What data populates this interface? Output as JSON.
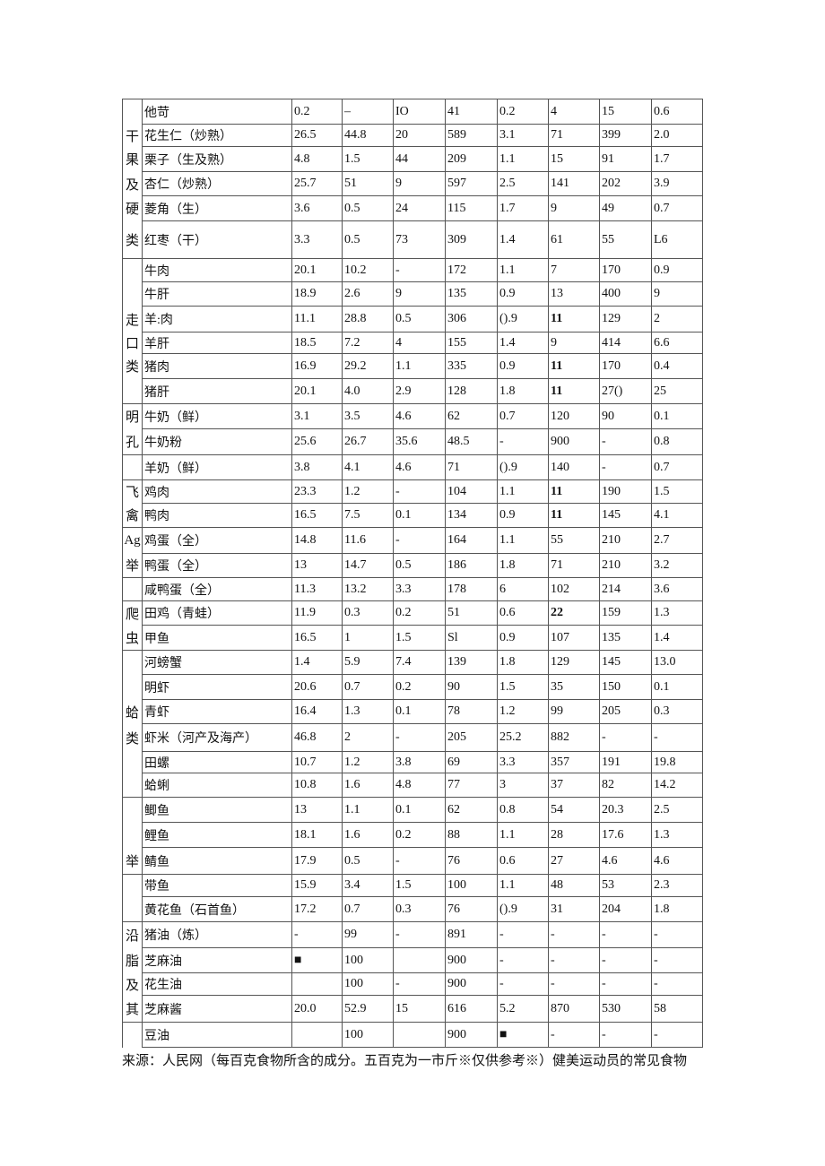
{
  "table": {
    "rows": [
      {
        "cat": "",
        "name": "他苛",
        "v": [
          "0.2",
          "–",
          "IO",
          "41",
          "0.2",
          "4",
          "15",
          "0.6"
        ]
      },
      {
        "cat": "干",
        "name": "花生仁（炒熟）",
        "v": [
          "26.5",
          "44.8",
          "20",
          "589",
          "3.1",
          "71",
          "399",
          "2.0"
        ]
      },
      {
        "cat": "果",
        "name": "栗子（生及熟）",
        "v": [
          "4.8",
          "1.5",
          "44",
          "209",
          "1.1",
          "15",
          "91",
          "1.7"
        ]
      },
      {
        "cat": "及",
        "name": "杏仁（炒熟）",
        "v": [
          "25.7",
          "51",
          "9",
          "597",
          "2.5",
          "141",
          "202",
          "3.9"
        ]
      },
      {
        "cat": "硬",
        "name": "菱角（生）",
        "v": [
          "3.6",
          "0.5",
          "24",
          "115",
          "1.7",
          "9",
          "49",
          "0.7"
        ]
      },
      {
        "cat": "类",
        "name": "红枣（干）",
        "v": [
          "3.3",
          "0.5",
          "73",
          "309",
          "1.4",
          "61",
          "55",
          "L6"
        ]
      },
      {
        "cat": "",
        "name": "牛肉",
        "v": [
          "20.1",
          "10.2",
          "-",
          "172",
          "1.1",
          "7",
          "170",
          "0.9"
        ],
        "g": 1
      },
      {
        "cat": "",
        "name": "牛肝",
        "v": [
          "18.9",
          "2.6",
          "9",
          "135",
          "0.9",
          "13",
          "400",
          "9"
        ]
      },
      {
        "cat": "走",
        "name": "羊:肉",
        "v": [
          "11.1",
          "28.8",
          "0.5",
          "306",
          "().9",
          "11",
          "129",
          "2"
        ]
      },
      {
        "cat": "口",
        "name": "羊肝",
        "v": [
          "18.5",
          "7.2",
          "4",
          "155",
          "1.4",
          "9",
          "414",
          "6.6"
        ]
      },
      {
        "cat": "类",
        "name": "猪肉",
        "v": [
          "16.9",
          "29.2",
          "1.1",
          "335",
          "0.9",
          "11",
          "170",
          "0.4"
        ]
      },
      {
        "cat": "",
        "name": "猪肝",
        "v": [
          "20.1",
          "4.0",
          "2.9",
          "128",
          "1.8",
          "11",
          "27()",
          "25"
        ]
      },
      {
        "cat": "明",
        "name": "牛奶（鲜）",
        "v": [
          "3.1",
          "3.5",
          "4.6",
          "62",
          "0.7",
          "120",
          "90",
          "0.1"
        ],
        "g": 1
      },
      {
        "cat": "孔",
        "name": "牛奶粉",
        "v": [
          "25.6",
          "26.7",
          "35.6",
          "48.5",
          "-",
          "900",
          "-",
          "0.8"
        ]
      },
      {
        "cat": "",
        "name": "羊奶（鲜）",
        "v": [
          "3.8",
          "4.1",
          "4.6",
          "71",
          "().9",
          "140",
          "-",
          "0.7"
        ],
        "g": 1
      },
      {
        "cat": "飞",
        "name": "鸡肉",
        "v": [
          "23.3",
          "1.2",
          "-",
          "104",
          "1.1",
          "11",
          "190",
          "1.5"
        ],
        "g": 1
      },
      {
        "cat": "禽",
        "name": "鸭肉",
        "v": [
          "16.5",
          "7.5",
          "0.1",
          "134",
          "0.9",
          "11",
          "145",
          "4.1"
        ]
      },
      {
        "cat": "Ag",
        "name": "鸡蛋（全）",
        "v": [
          "14.8",
          "11.6",
          "-",
          "164",
          "1.1",
          "55",
          "210",
          "2.7"
        ],
        "g": 1
      },
      {
        "cat": "举",
        "name": "鸭蛋（全）",
        "v": [
          "13",
          "14.7",
          "0.5",
          "186",
          "1.8",
          "71",
          "210",
          "3.2"
        ]
      },
      {
        "cat": "",
        "name": "咸鸭蛋（全）",
        "v": [
          "11.3",
          "13.2",
          "3.3",
          "178",
          "6",
          "102",
          "214",
          "3.6"
        ],
        "g": 1
      },
      {
        "cat": "爬",
        "name": "田鸡（青蛙）",
        "v": [
          "11.9",
          "0.3",
          "0.2",
          "51",
          "0.6",
          "22",
          "159",
          "1.3"
        ],
        "g": 1
      },
      {
        "cat": "虫",
        "name": "甲鱼",
        "v": [
          "16.5",
          "1",
          "1.5",
          "Sl",
          "0.9",
          "107",
          "135",
          "1.4"
        ]
      },
      {
        "cat": "",
        "name": "河螃蟹",
        "v": [
          "1.4",
          "5.9",
          "7.4",
          "139",
          "1.8",
          "129",
          "145",
          "13.0"
        ],
        "g": 1
      },
      {
        "cat": "",
        "name": "明虾",
        "v": [
          "20.6",
          "0.7",
          "0.2",
          "90",
          "1.5",
          "35",
          "150",
          "0.1"
        ]
      },
      {
        "cat": "蛤",
        "name": "青虾",
        "v": [
          "16.4",
          "1.3",
          "0.1",
          "78",
          "1.2",
          "99",
          "205",
          "0.3"
        ]
      },
      {
        "cat": "类",
        "name": "虾米（河产及海产）",
        "v": [
          "46.8",
          "2",
          "-",
          "205",
          "25.2",
          "882",
          "-",
          "-"
        ]
      },
      {
        "cat": "",
        "name": "田螺",
        "v": [
          "10.7",
          "1.2",
          "3.8",
          "69",
          "3.3",
          "357",
          "191",
          "19.8"
        ]
      },
      {
        "cat": "",
        "name": "蛤蜊",
        "v": [
          "10.8",
          "1.6",
          "4.8",
          "77",
          "3",
          "37",
          "82",
          "14.2"
        ]
      },
      {
        "cat": "",
        "name": "鲫鱼",
        "v": [
          "13",
          "1.1",
          "0.1",
          "62",
          "0.8",
          "54",
          "20.3",
          "2.5"
        ],
        "g": 1
      },
      {
        "cat": "",
        "name": "鲤鱼",
        "v": [
          "18.1",
          "1.6",
          "0.2",
          "88",
          "1.1",
          "28",
          "17.6",
          "1.3"
        ]
      },
      {
        "cat": "举",
        "name": "鲭鱼",
        "v": [
          "17.9",
          "0.5",
          "-",
          "76",
          "0.6",
          "27",
          "4.6",
          "4.6"
        ]
      },
      {
        "cat": "",
        "name": "带鱼",
        "v": [
          "15.9",
          "3.4",
          "1.5",
          "100",
          "1.1",
          "48",
          "53",
          "2.3"
        ],
        "g": 1
      },
      {
        "cat": "",
        "name": "黄花鱼（石首鱼）",
        "v": [
          "17.2",
          "0.7",
          "0.3",
          "76",
          "().9",
          "31",
          "204",
          "1.8"
        ]
      },
      {
        "cat": "沿",
        "name": "猪油（炼）",
        "v": [
          "-",
          "99",
          "-",
          "891",
          "-",
          "-",
          "-",
          "-"
        ],
        "g": 1
      },
      {
        "cat": "脂",
        "name": "芝麻油",
        "v": [
          "■",
          "100",
          "",
          "900",
          "-",
          "-",
          "-",
          "-"
        ]
      },
      {
        "cat": "及",
        "name": "花生油",
        "v": [
          "",
          "100",
          "-",
          "900",
          "-",
          "-",
          "-",
          "-"
        ]
      },
      {
        "cat": "其",
        "name": "芝麻酱",
        "v": [
          "20.0",
          "52.9",
          "15",
          "616",
          "5.2",
          "870",
          "530",
          "58"
        ]
      },
      {
        "cat": "",
        "name": "豆油",
        "v": [
          "",
          "100",
          "",
          "900",
          "■",
          "-",
          "-",
          "-"
        ],
        "g": 1
      }
    ]
  },
  "source": "来源：人民网（每百克食物所含的成分。五百克为一市斤※仅供参考※）健美运动员的常见食物"
}
